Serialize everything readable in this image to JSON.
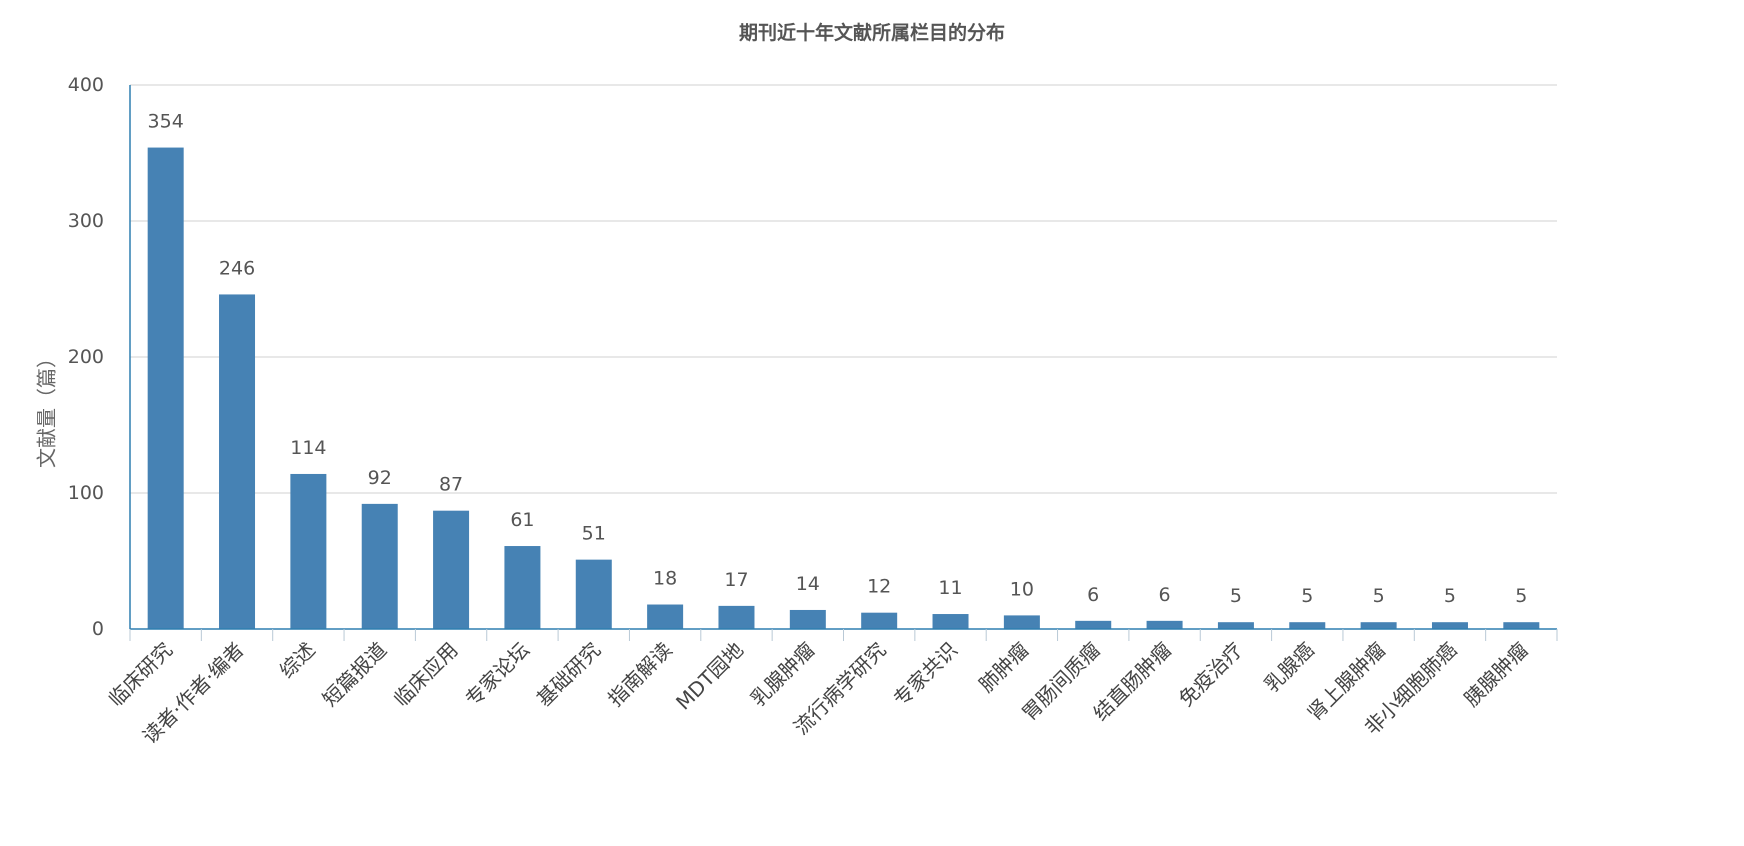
{
  "chart_data": {
    "type": "bar",
    "title": "期刊近十年文献所属栏目的分布",
    "xlabel": "",
    "ylabel": "文献量（篇）",
    "ylim": [
      0,
      400
    ],
    "yticks": [
      0,
      100,
      200,
      300,
      400
    ],
    "grid": true,
    "bar_color": "#4682b4",
    "categories": [
      "临床研究",
      "读者·作者·编者",
      "综述",
      "短篇报道",
      "临床应用",
      "专家论坛",
      "基础研究",
      "指南解读",
      "MDT园地",
      "乳腺肿瘤",
      "流行病学研究",
      "专家共识",
      "肺肿瘤",
      "胃肠间质瘤",
      "结直肠肿瘤",
      "免疫治疗",
      "乳腺癌",
      "肾上腺肿瘤",
      "非小细胞肺癌",
      "胰腺肿瘤"
    ],
    "values": [
      354,
      246,
      114,
      92,
      87,
      61,
      51,
      18,
      17,
      14,
      12,
      11,
      10,
      6,
      6,
      5,
      5,
      5,
      5,
      5
    ]
  }
}
